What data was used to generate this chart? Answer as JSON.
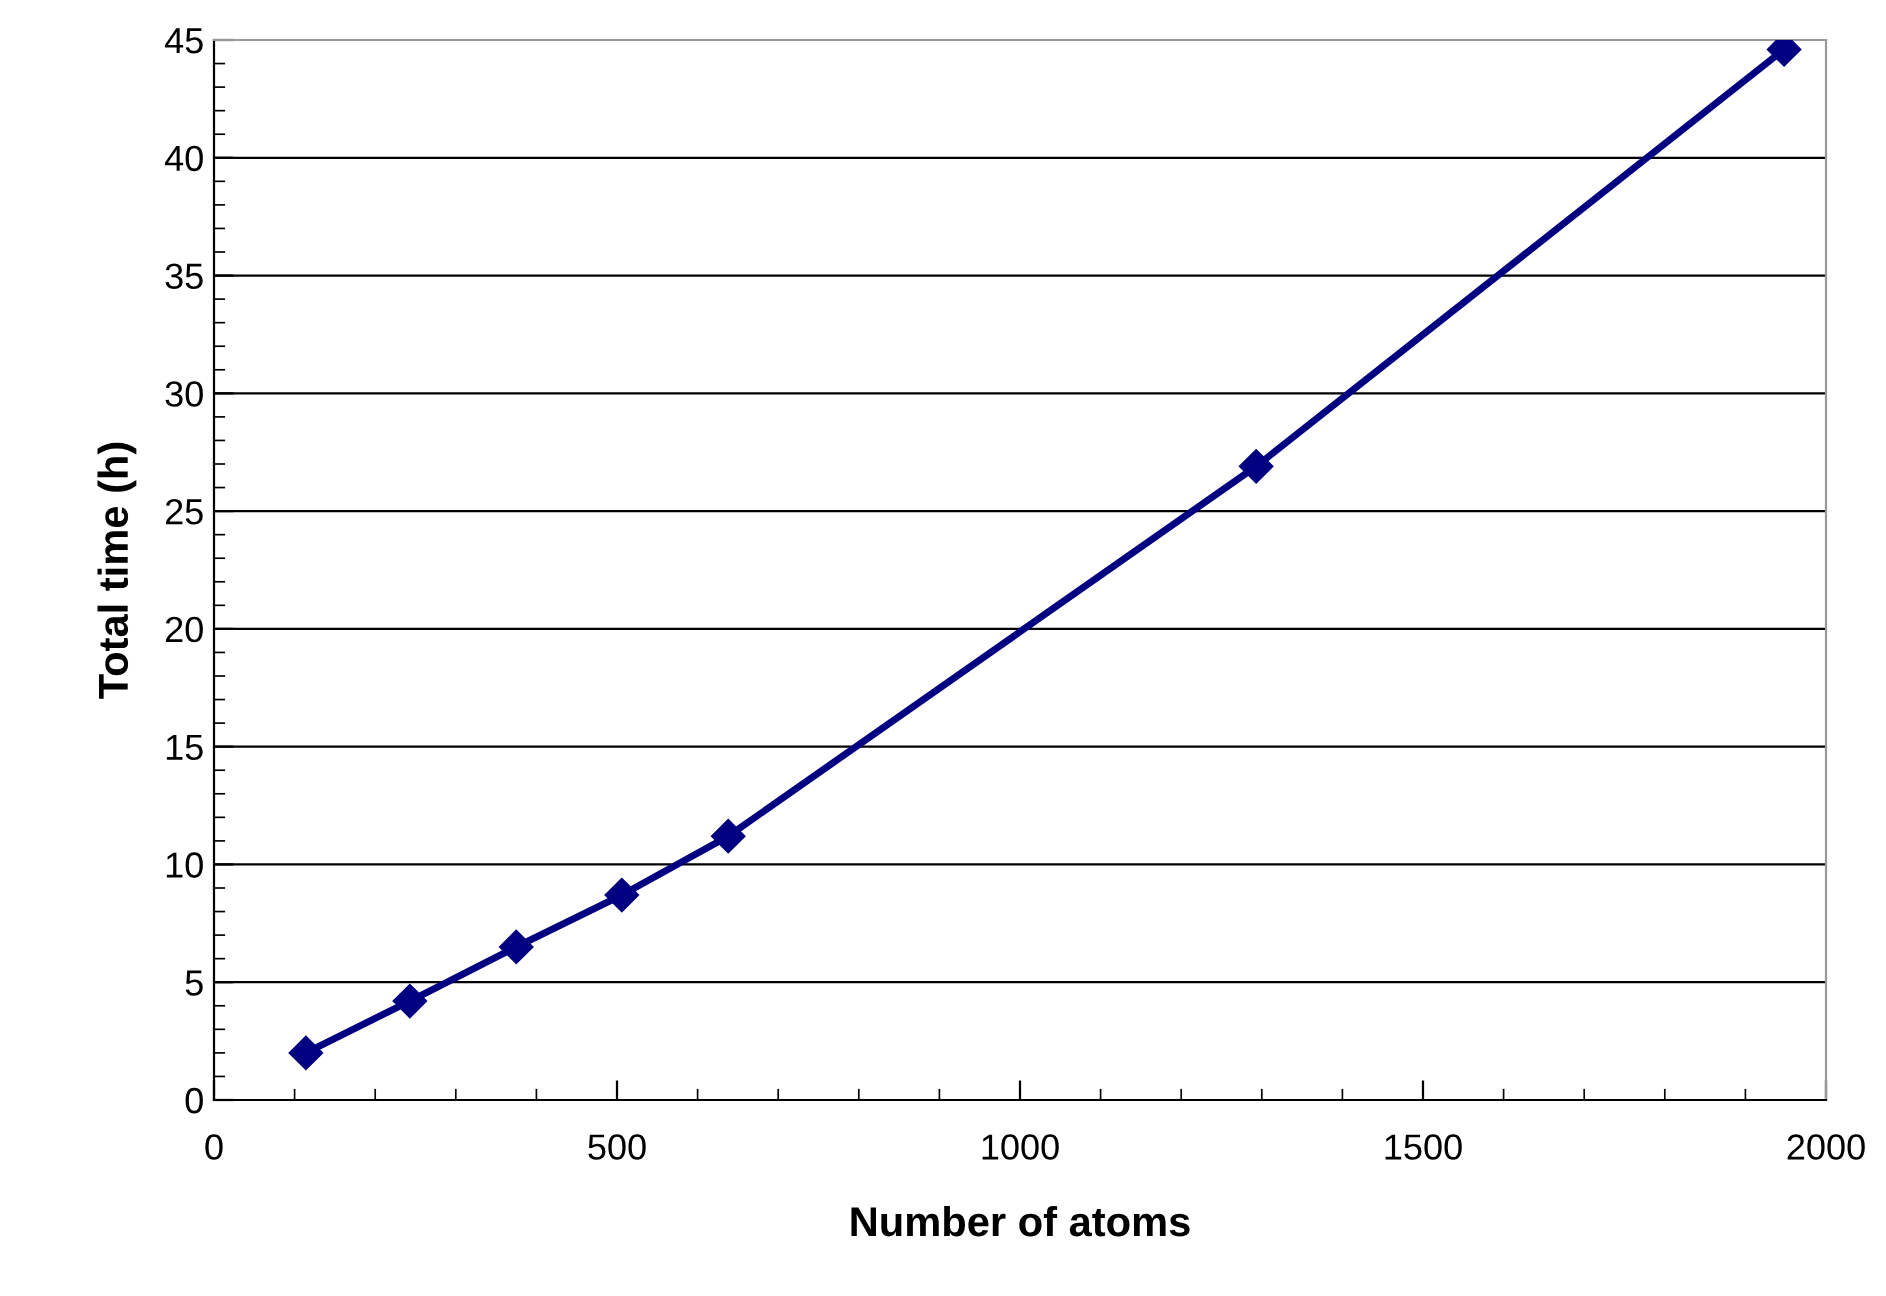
{
  "chart_data": {
    "type": "line",
    "xlabel": "Number of atoms",
    "ylabel": "Total time (h)",
    "x": [
      114,
      243,
      375,
      506,
      638,
      1293,
      1948
    ],
    "series": [
      {
        "color": "#000080",
        "values": [
          2.0,
          4.2,
          6.5,
          8.7,
          11.2,
          26.9,
          44.6
        ]
      }
    ],
    "xlim": [
      0,
      2000
    ],
    "xticks": [
      0,
      500,
      1000,
      1500,
      2000
    ],
    "ylim": [
      0,
      45
    ],
    "yticks": [
      0,
      5,
      10,
      15,
      20,
      25,
      30,
      35,
      40,
      45
    ],
    "grid": "y",
    "marker": "diamond",
    "line_style": "solid",
    "legend": false
  }
}
